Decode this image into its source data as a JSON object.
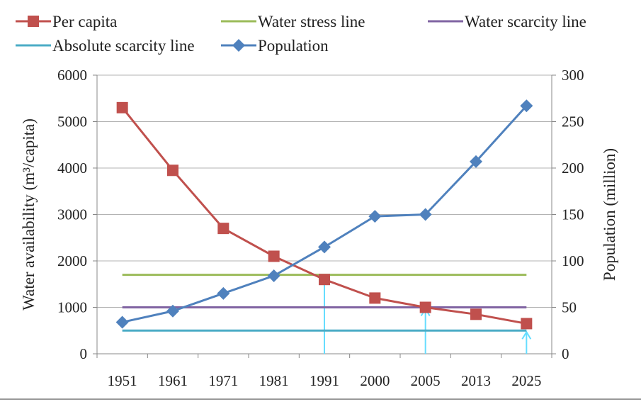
{
  "chart_data": {
    "type": "line",
    "categories": [
      "1951",
      "1961",
      "1971",
      "1981",
      "1991",
      "2000",
      "2005",
      "2013",
      "2025"
    ],
    "series": [
      {
        "name": "Per capita",
        "axis": "left",
        "color": "#c0504d",
        "marker": "square",
        "values": [
          5300,
          3950,
          2700,
          2100,
          1600,
          1200,
          1000,
          850,
          650
        ]
      },
      {
        "name": "Water stress line",
        "axis": "left",
        "color": "#9bbb59",
        "marker": "none",
        "values": [
          1700,
          1700,
          1700,
          1700,
          1700,
          1700,
          1700,
          1700,
          1700
        ]
      },
      {
        "name": "Water scarcity line",
        "axis": "left",
        "color": "#8064a2",
        "marker": "none",
        "values": [
          1000,
          1000,
          1000,
          1000,
          1000,
          1000,
          1000,
          1000,
          1000
        ]
      },
      {
        "name": "Absolute scarcity line",
        "axis": "left",
        "color": "#4bacc6",
        "marker": "none",
        "values": [
          500,
          500,
          500,
          500,
          500,
          500,
          500,
          500,
          500
        ]
      },
      {
        "name": "Population",
        "axis": "right",
        "color": "#4f81bd",
        "marker": "diamond",
        "values": [
          34,
          46,
          65,
          84,
          115,
          148,
          150,
          207,
          267
        ]
      }
    ],
    "arrows_at": [
      "1991",
      "2005",
      "2025"
    ],
    "arrow_color": "#66ddff",
    "ylabel": "Water availability (m³/capita)",
    "y2label": "Population (million)",
    "ylim": [
      0,
      6000
    ],
    "y2lim": [
      0,
      300
    ],
    "yticks": [
      0,
      1000,
      2000,
      3000,
      4000,
      5000,
      6000
    ],
    "y2ticks": [
      0,
      50,
      100,
      150,
      200,
      250,
      300
    ],
    "grid": true,
    "legend_position": "top"
  }
}
